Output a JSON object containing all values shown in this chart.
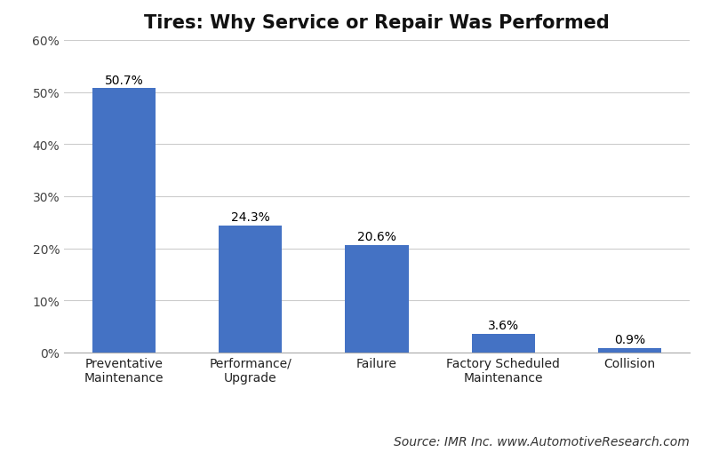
{
  "title": "Tires: Why Service or Repair Was Performed",
  "categories": [
    "Preventative\nMaintenance",
    "Performance/\nUpgrade",
    "Failure",
    "Factory Scheduled\nMaintenance",
    "Collision"
  ],
  "values": [
    50.7,
    24.3,
    20.6,
    3.6,
    0.9
  ],
  "labels": [
    "50.7%",
    "24.3%",
    "20.6%",
    "3.6%",
    "0.9%"
  ],
  "bar_color": "#4472C4",
  "background_color": "#FFFFFF",
  "ylim": [
    0,
    60
  ],
  "yticks": [
    0,
    10,
    20,
    30,
    40,
    50,
    60
  ],
  "ytick_labels": [
    "0%",
    "10%",
    "20%",
    "30%",
    "40%",
    "50%",
    "60%"
  ],
  "title_fontsize": 15,
  "label_fontsize": 10,
  "tick_fontsize": 10,
  "source_text": "Source: IMR Inc. www.AutomotiveResearch.com",
  "source_fontsize": 10,
  "grid_color": "#CCCCCC",
  "title_fontweight": "bold",
  "bar_width": 0.5
}
